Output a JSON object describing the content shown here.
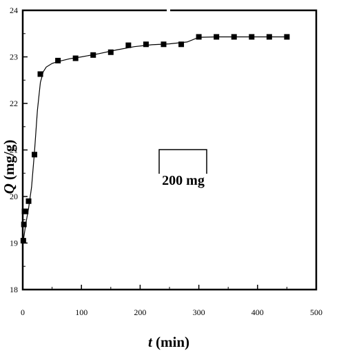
{
  "chart_data": {
    "type": "scatter",
    "title": "",
    "xlabel_var": "t",
    "xlabel_unit": "(min)",
    "ylabel_var": "Q",
    "ylabel_unit": "(mg/g)",
    "xlim": [
      0,
      500
    ],
    "ylim": [
      18,
      24
    ],
    "x_ticks": [
      0,
      100,
      200,
      300,
      400,
      500
    ],
    "x_tick_labels": [
      "0",
      "100",
      "200",
      "300",
      "400",
      "500"
    ],
    "y_ticks": [
      18,
      19,
      20,
      21,
      22,
      23,
      24
    ],
    "y_tick_labels": [
      "18",
      "19",
      "20",
      "21",
      "22",
      "23",
      "24"
    ],
    "grid": false,
    "annotation": "200 mg",
    "series": [
      {
        "marker": "square",
        "color": "#000000",
        "x": [
          1,
          2,
          3,
          5,
          10,
          20,
          30,
          60,
          90,
          120,
          150,
          180,
          210,
          240,
          270,
          300,
          330,
          360,
          390,
          420,
          450
        ],
        "y": [
          19.05,
          19.4,
          19.68,
          19.68,
          19.9,
          20.9,
          22.63,
          22.92,
          22.97,
          23.04,
          23.1,
          23.25,
          23.27,
          23.27,
          23.27,
          23.43,
          23.43,
          23.43,
          23.43,
          23.43,
          23.43
        ]
      }
    ],
    "fit_curve": {
      "color": "#000000",
      "x": [
        1,
        5,
        10,
        15,
        20,
        25,
        30,
        35,
        40,
        50,
        60,
        80,
        100,
        130,
        160,
        190,
        220,
        250,
        280,
        300,
        330,
        360,
        400,
        450
      ],
      "y": [
        19.05,
        19.4,
        19.75,
        20.2,
        20.95,
        21.85,
        22.45,
        22.68,
        22.78,
        22.86,
        22.9,
        22.96,
        23.0,
        23.07,
        23.15,
        23.22,
        23.26,
        23.28,
        23.32,
        23.42,
        23.43,
        23.43,
        23.43,
        23.43
      ]
    }
  }
}
